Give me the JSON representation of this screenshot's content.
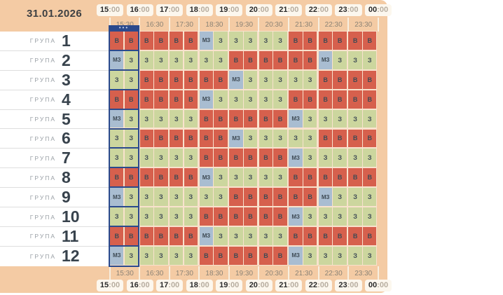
{
  "app": {
    "date": "31.01.2026"
  },
  "timeline": {
    "hours": [
      "15:00",
      "16:00",
      "17:00",
      "18:00",
      "19:00",
      "20:00",
      "21:00",
      "22:00",
      "23:00",
      "00:00"
    ],
    "half_hours": [
      "15:30",
      "16:30",
      "17:30",
      "18:30",
      "19:30",
      "20:30",
      "21:30",
      "22:30",
      "23:30"
    ]
  },
  "current_time_marker": {
    "dots": "•••"
  },
  "statuses": {
    "В": {
      "name": "outage",
      "color": "#d6604d"
    },
    "З": {
      "name": "power-on",
      "color": "#ccd69e"
    },
    "МЗ": {
      "name": "possible-outage",
      "color": "#a9bdd1"
    }
  },
  "colors": {
    "panel_bg": "#f4cba4",
    "marker_blue": "#2b4a8d",
    "cell_text": "#3e4a54"
  },
  "groups": [
    {
      "label": "ГРУПА",
      "number": "1",
      "slots": [
        "В",
        "В",
        "В",
        "В",
        "В",
        "В",
        "МЗ",
        "З",
        "З",
        "З",
        "З",
        "З",
        "В",
        "В",
        "В",
        "В",
        "В",
        "В"
      ]
    },
    {
      "label": "ГРУПА",
      "number": "2",
      "slots": [
        "МЗ",
        "З",
        "З",
        "З",
        "З",
        "З",
        "З",
        "З",
        "В",
        "В",
        "В",
        "В",
        "В",
        "В",
        "МЗ",
        "З",
        "З",
        "З"
      ]
    },
    {
      "label": "ГРУПА",
      "number": "3",
      "slots": [
        "З",
        "З",
        "В",
        "В",
        "В",
        "В",
        "В",
        "В",
        "МЗ",
        "З",
        "З",
        "З",
        "З",
        "З",
        "В",
        "В",
        "В",
        "В"
      ]
    },
    {
      "label": "ГРУПА",
      "number": "4",
      "slots": [
        "В",
        "В",
        "В",
        "В",
        "В",
        "В",
        "МЗ",
        "З",
        "З",
        "З",
        "З",
        "З",
        "В",
        "В",
        "В",
        "В",
        "В",
        "В"
      ]
    },
    {
      "label": "ГРУПА",
      "number": "5",
      "slots": [
        "МЗ",
        "З",
        "З",
        "З",
        "З",
        "З",
        "В",
        "В",
        "В",
        "В",
        "В",
        "В",
        "МЗ",
        "З",
        "З",
        "З",
        "З",
        "З"
      ]
    },
    {
      "label": "ГРУПА",
      "number": "6",
      "slots": [
        "З",
        "З",
        "В",
        "В",
        "В",
        "В",
        "В",
        "В",
        "МЗ",
        "З",
        "З",
        "З",
        "З",
        "З",
        "В",
        "В",
        "В",
        "В"
      ]
    },
    {
      "label": "ГРУПА",
      "number": "7",
      "slots": [
        "З",
        "З",
        "З",
        "З",
        "З",
        "З",
        "В",
        "В",
        "В",
        "В",
        "В",
        "В",
        "МЗ",
        "З",
        "З",
        "З",
        "З",
        "З"
      ]
    },
    {
      "label": "ГРУПА",
      "number": "8",
      "slots": [
        "В",
        "В",
        "В",
        "В",
        "В",
        "В",
        "МЗ",
        "З",
        "З",
        "З",
        "З",
        "З",
        "В",
        "В",
        "В",
        "В",
        "В",
        "В"
      ]
    },
    {
      "label": "ГРУПА",
      "number": "9",
      "slots": [
        "МЗ",
        "З",
        "З",
        "З",
        "З",
        "З",
        "З",
        "З",
        "В",
        "В",
        "В",
        "В",
        "В",
        "В",
        "МЗ",
        "З",
        "З",
        "З"
      ]
    },
    {
      "label": "ГРУПА",
      "number": "10",
      "slots": [
        "З",
        "З",
        "З",
        "З",
        "З",
        "З",
        "В",
        "В",
        "В",
        "В",
        "В",
        "В",
        "МЗ",
        "З",
        "З",
        "З",
        "З",
        "З"
      ]
    },
    {
      "label": "ГРУПА",
      "number": "11",
      "slots": [
        "В",
        "В",
        "В",
        "В",
        "В",
        "В",
        "МЗ",
        "З",
        "З",
        "З",
        "З",
        "З",
        "В",
        "В",
        "В",
        "В",
        "В",
        "В"
      ]
    },
    {
      "label": "ГРУПА",
      "number": "12",
      "slots": [
        "МЗ",
        "З",
        "З",
        "З",
        "З",
        "З",
        "В",
        "В",
        "В",
        "В",
        "В",
        "В",
        "МЗ",
        "З",
        "З",
        "З",
        "З",
        "З"
      ]
    }
  ]
}
